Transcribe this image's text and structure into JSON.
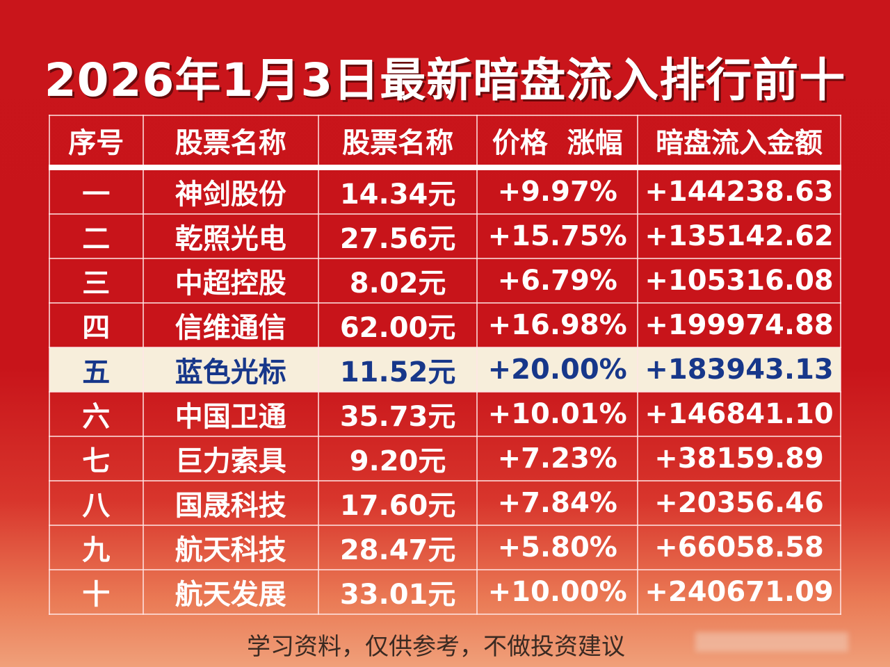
{
  "title": "2026年1月3日最新暗盘流入排行前十",
  "table": {
    "headers": [
      "序号",
      "股票名称",
      "股票名称",
      "价格  涨幅",
      "暗盘流入金额"
    ],
    "rows": [
      [
        "一",
        "神剑股份",
        "14.34元",
        "+9.97%",
        "+144238.63"
      ],
      [
        "二",
        "乾照光电",
        "27.56元",
        "+15.75%",
        "+135142.62"
      ],
      [
        "三",
        "中超控股",
        "8.02元",
        "+6.79%",
        "+105316.08"
      ],
      [
        "四",
        "信维通信",
        "62.00元",
        "+16.98%",
        "+199974.88"
      ],
      [
        "五",
        "蓝色光标",
        "11.52元",
        "+20.00%",
        "+183943.13"
      ],
      [
        "六",
        "中国卫通",
        "35.73元",
        "+10.01%",
        "+146841.10"
      ],
      [
        "七",
        "巨力索具",
        "9.20元",
        "+7.23%",
        "+38159.89"
      ],
      [
        "八",
        "国晟科技",
        "17.60元",
        "+7.84%",
        "+20356.46"
      ],
      [
        "九",
        "航天科技",
        "28.47元",
        "+5.80%",
        "+66058.58"
      ],
      [
        "十",
        "航天发展",
        "33.01元",
        "+10.00%",
        "+240671.09"
      ]
    ],
    "highlighted_row": 4,
    "highlight_bg": "#f7eedb",
    "highlight_text": "#17378a"
  },
  "footer": "学习资料，仅供参考，不做投资建议"
}
